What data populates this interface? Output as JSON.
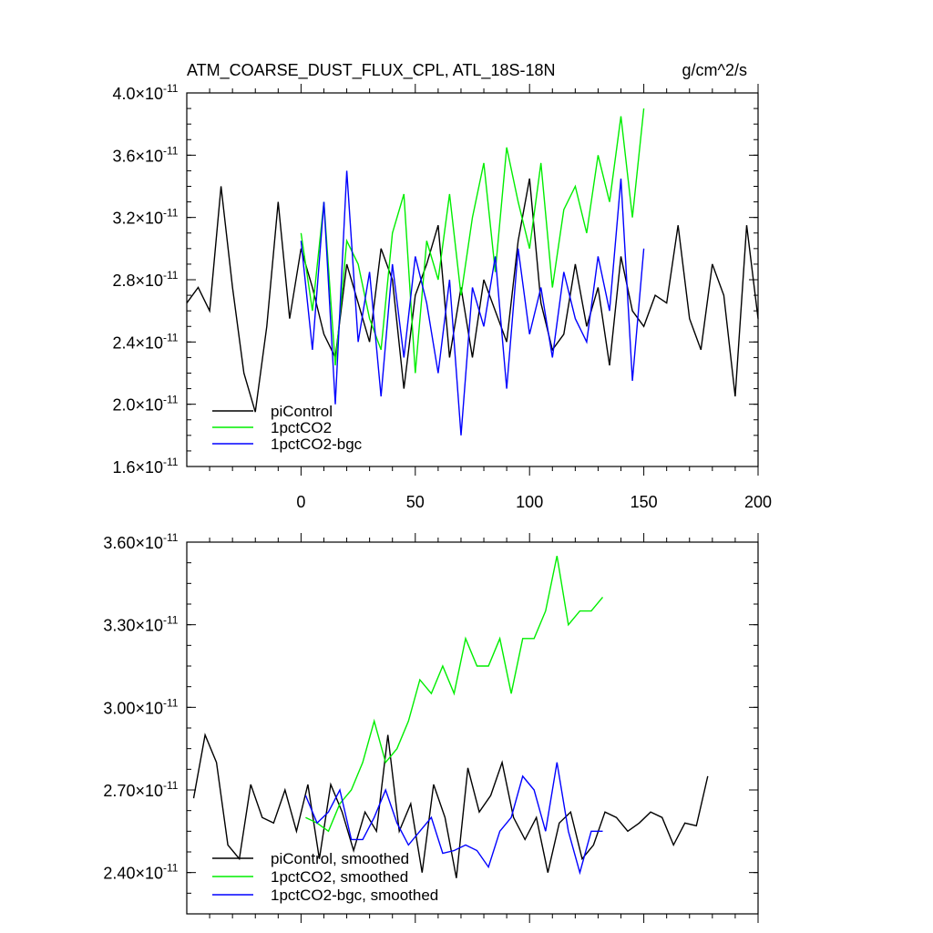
{
  "chart_data": [
    {
      "type": "line",
      "title": "ATM_COARSE_DUST_FLUX_CPL, ATL_18S-18N",
      "units": "g/cm^2/s",
      "xlim": [
        -50,
        200
      ],
      "ylim": [
        1.6e-11,
        4e-11
      ],
      "x_ticks": [
        0,
        50,
        100,
        150,
        200
      ],
      "y_ticks": [
        {
          "mantissa": "1.6",
          "exp": "-11",
          "value": 1.6e-11
        },
        {
          "mantissa": "2.0",
          "exp": "-11",
          "value": 2e-11
        },
        {
          "mantissa": "2.4",
          "exp": "-11",
          "value": 2.4e-11
        },
        {
          "mantissa": "2.8",
          "exp": "-11",
          "value": 2.8e-11
        },
        {
          "mantissa": "3.2",
          "exp": "-11",
          "value": 3.2e-11
        },
        {
          "mantissa": "3.6",
          "exp": "-11",
          "value": 3.6e-11
        },
        {
          "mantissa": "4.0",
          "exp": "-11",
          "value": 4e-11
        }
      ],
      "legend": "bottom-left",
      "series": [
        {
          "name": "piControl",
          "color": "#000000",
          "x_start": -50,
          "x_step": 5,
          "values": [
            2.65,
            2.75,
            2.6,
            3.4,
            2.75,
            2.2,
            1.95,
            2.5,
            3.3,
            2.55,
            3.0,
            2.75,
            2.45,
            2.3,
            2.9,
            2.65,
            2.4,
            3.0,
            2.8,
            2.1,
            2.7,
            2.9,
            3.15,
            2.3,
            2.75,
            2.3,
            2.8,
            2.6,
            2.4,
            3.05,
            3.45,
            2.65,
            2.35,
            2.45,
            2.9,
            2.5,
            2.75,
            2.25,
            2.95,
            2.6,
            2.5,
            2.7,
            2.65,
            3.15,
            2.55,
            2.35,
            2.9,
            2.7,
            2.05,
            3.15,
            2.55
          ]
        },
        {
          "name": "1pctCO2",
          "color": "#00ee00",
          "x_start": 0,
          "x_step": 5,
          "values": [
            3.1,
            2.6,
            3.3,
            2.25,
            3.05,
            2.9,
            2.55,
            2.35,
            3.1,
            3.35,
            2.2,
            3.05,
            2.8,
            3.35,
            2.7,
            3.2,
            3.55,
            2.85,
            3.65,
            3.3,
            3.0,
            3.55,
            2.75,
            3.25,
            3.4,
            3.1,
            3.6,
            3.3,
            3.85,
            3.2,
            3.9
          ]
        },
        {
          "name": "1pctCO2-bgc",
          "color": "#0000ff",
          "x_start": 0,
          "x_step": 5,
          "values": [
            3.05,
            2.35,
            3.3,
            2.0,
            3.5,
            2.4,
            2.85,
            2.05,
            2.9,
            2.3,
            2.95,
            2.65,
            2.2,
            2.8,
            1.8,
            2.75,
            2.5,
            2.95,
            2.1,
            3.0,
            2.45,
            2.75,
            2.3,
            2.85,
            2.55,
            2.4,
            2.95,
            2.6,
            3.45,
            2.15,
            3.0
          ]
        }
      ]
    },
    {
      "type": "line",
      "xlim": [
        -50,
        200
      ],
      "ylim": [
        2.25e-11,
        3.6e-11
      ],
      "x_ticks": [
        0,
        50,
        100,
        150,
        200
      ],
      "y_ticks": [
        {
          "mantissa": "2.40",
          "exp": "-11",
          "value": 2.4e-11
        },
        {
          "mantissa": "2.70",
          "exp": "-11",
          "value": 2.7e-11
        },
        {
          "mantissa": "3.00",
          "exp": "-11",
          "value": 3e-11
        },
        {
          "mantissa": "3.30",
          "exp": "-11",
          "value": 3.3e-11
        },
        {
          "mantissa": "3.60",
          "exp": "-11",
          "value": 3.6e-11
        }
      ],
      "legend": "bottom-left",
      "series": [
        {
          "name": "piControl, smoothed",
          "color": "#000000",
          "x_start": -47,
          "x_step": 5,
          "values": [
            2.67,
            2.9,
            2.8,
            2.5,
            2.45,
            2.72,
            2.6,
            2.58,
            2.7,
            2.55,
            2.72,
            2.45,
            2.72,
            2.62,
            2.48,
            2.62,
            2.55,
            2.9,
            2.55,
            2.65,
            2.4,
            2.72,
            2.6,
            2.38,
            2.78,
            2.62,
            2.68,
            2.8,
            2.6,
            2.52,
            2.6,
            2.4,
            2.58,
            2.62,
            2.45,
            2.5,
            2.62,
            2.6,
            2.55,
            2.58,
            2.62,
            2.6,
            2.5,
            2.58,
            2.57,
            2.75
          ]
        },
        {
          "name": "1pctCO2, smoothed",
          "color": "#00ee00",
          "x_start": 2,
          "x_step": 5,
          "values": [
            2.6,
            2.58,
            2.55,
            2.65,
            2.7,
            2.8,
            2.95,
            2.8,
            2.85,
            2.95,
            3.1,
            3.05,
            3.15,
            3.05,
            3.25,
            3.15,
            3.15,
            3.25,
            3.05,
            3.25,
            3.25,
            3.35,
            3.55,
            3.3,
            3.35,
            3.35,
            3.4
          ]
        },
        {
          "name": "1pctCO2-bgc, smoothed",
          "color": "#0000ff",
          "x_start": 2,
          "x_step": 5,
          "values": [
            2.68,
            2.58,
            2.62,
            2.7,
            2.52,
            2.52,
            2.6,
            2.7,
            2.58,
            2.5,
            2.55,
            2.6,
            2.47,
            2.48,
            2.5,
            2.48,
            2.42,
            2.55,
            2.6,
            2.75,
            2.7,
            2.55,
            2.8,
            2.55,
            2.4,
            2.55,
            2.55
          ]
        }
      ]
    }
  ]
}
